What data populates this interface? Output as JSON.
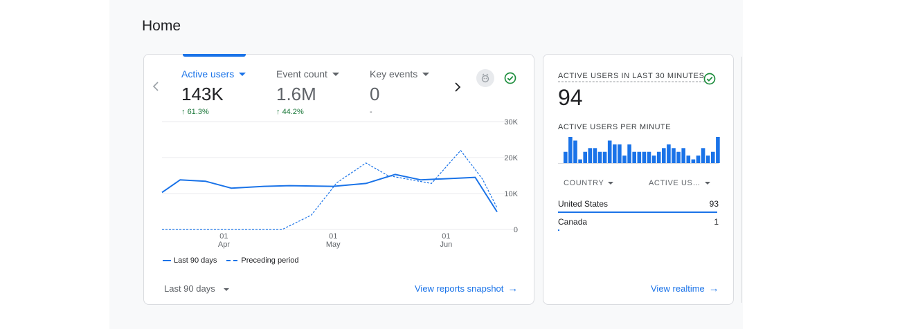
{
  "page": {
    "title": "Home"
  },
  "main_card": {
    "metrics": [
      {
        "label": "Active users",
        "value": "143K",
        "delta": "61.3%",
        "delta_dir": "up",
        "active": true
      },
      {
        "label": "Event count",
        "value": "1.6M",
        "delta": "44.2%",
        "delta_dir": "up",
        "active": false
      },
      {
        "label": "Key events",
        "value": "0",
        "delta": "-",
        "delta_dir": "none",
        "active": false
      }
    ],
    "prev_icon": "chevron-left-icon",
    "next_icon": "chevron-right-icon",
    "insight_icon": "insights-badge-icon",
    "status_icon": "check-circle-icon",
    "legend": {
      "current": "Last 90 days",
      "previous": "Preceding period"
    },
    "date_range": "Last 90 days",
    "link": "View reports snapshot",
    "link_icon": "arrow-right-icon",
    "colors": {
      "accent": "#1a73e8",
      "positive": "#137333",
      "status_green": "#1e8e3e"
    }
  },
  "chart_data": {
    "type": "line",
    "y_ticks": [
      "30K",
      "20K",
      "10K",
      "0"
    ],
    "ylim": [
      0,
      30000
    ],
    "x_ticks": [
      {
        "day": "01",
        "month": "Apr",
        "x": 17
      },
      {
        "day": "01",
        "month": "May",
        "x": 47
      },
      {
        "day": "01",
        "month": "Jun",
        "x": 78
      }
    ],
    "xlim": [
      0,
      92
    ],
    "grid": true,
    "legend_position": "bottom-left",
    "series": [
      {
        "name": "Last 90 days",
        "style": "solid",
        "points": [
          [
            0,
            10300
          ],
          [
            5,
            13800
          ],
          [
            12,
            13400
          ],
          [
            19,
            11500
          ],
          [
            28,
            12000
          ],
          [
            35,
            12200
          ],
          [
            47,
            12000
          ],
          [
            56,
            12800
          ],
          [
            64,
            15300
          ],
          [
            71,
            13800
          ],
          [
            82,
            14300
          ],
          [
            86,
            14500
          ],
          [
            92,
            4900
          ]
        ]
      },
      {
        "name": "Preceding period",
        "style": "dashed",
        "points": [
          [
            0,
            0
          ],
          [
            33,
            0
          ],
          [
            41,
            4000
          ],
          [
            48,
            13000
          ],
          [
            56,
            18500
          ],
          [
            62,
            15000
          ],
          [
            74,
            12800
          ],
          [
            82,
            22000
          ],
          [
            88,
            14000
          ],
          [
            92,
            6000
          ]
        ]
      }
    ]
  },
  "realtime_card": {
    "title": "ACTIVE USERS IN LAST 30 MINUTES",
    "value": "94",
    "status_icon": "check-circle-icon",
    "subtitle": "ACTIVE USERS PER MINUTE",
    "per_minute": [
      3,
      7,
      6,
      1,
      3,
      4,
      4,
      3,
      3,
      6,
      5,
      5,
      2,
      5,
      3,
      3,
      3,
      3,
      2,
      3,
      4,
      5,
      4,
      3,
      4,
      2,
      1,
      2,
      4,
      2,
      3,
      7
    ],
    "columns": {
      "country": "COUNTRY",
      "users": "ACTIVE US…"
    },
    "rows": [
      {
        "country": "United States",
        "value": "93",
        "share": 0.99
      },
      {
        "country": "Canada",
        "value": "1",
        "share": 0.01
      }
    ],
    "link": "View realtime",
    "link_icon": "arrow-right-icon"
  }
}
